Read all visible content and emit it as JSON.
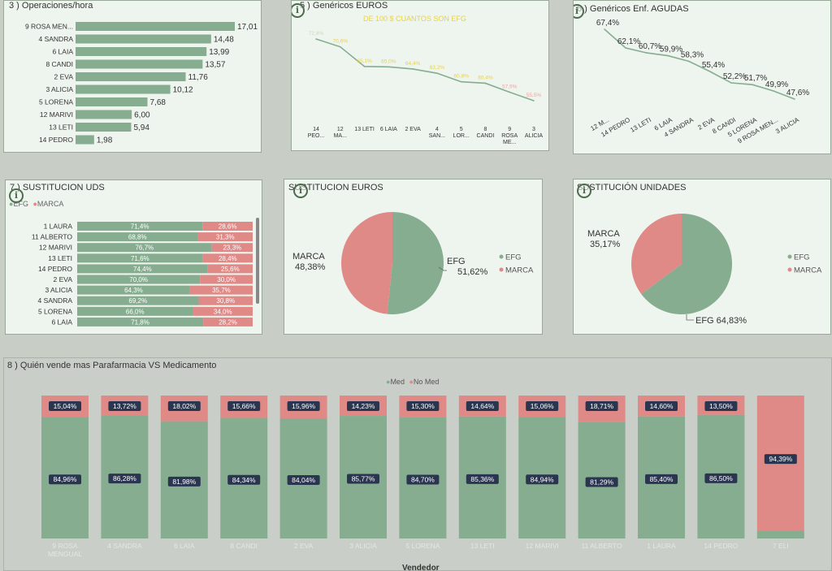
{
  "colors": {
    "green": "#86ad8f",
    "pink": "#e08a87",
    "label_bg": "#2a3550",
    "line": "#86ad8f",
    "yellow": "#e6d44a"
  },
  "panel_ops": {
    "title": "3 ) Operaciones/hora"
  },
  "panel_geur": {
    "title": "5 ) Genéricos EUROS",
    "subtitle": "DE 100 $ CUANTOS SON EFG"
  },
  "panel_gag": {
    "title": "6 ) Genéricos Enf. AGUDAS"
  },
  "panel_suds": {
    "title": "7 ) SUSTITUCION UDS",
    "legend": [
      "EFG",
      "MARCA"
    ]
  },
  "panel_seur": {
    "title": "SUSTITUCION EUROS",
    "legend": [
      "EFG",
      "MARCA"
    ]
  },
  "panel_sun": {
    "title": "SUSTITUCIÓN UNIDADES",
    "legend": [
      "EFG",
      "MARCA"
    ]
  },
  "panel_med": {
    "title": "8 ) Quién vende mas Parafarmacia VS Medicamento",
    "legend": [
      "Med",
      "No Med"
    ],
    "xlabel": "Vendedor"
  },
  "chart_data": [
    {
      "id": "ops",
      "type": "bar",
      "orientation": "horizontal",
      "title": "3 ) Operaciones/hora",
      "categories": [
        "9 ROSA MEN...",
        "4 SANDRA",
        "6 LAIA",
        "8 CANDI",
        "2 EVA",
        "3 ALICIA",
        "5 LORENA",
        "12 MARIVI",
        "13 LETI",
        "14 PEDRO"
      ],
      "values": [
        17.01,
        14.48,
        13.99,
        13.57,
        11.76,
        10.12,
        7.68,
        6.0,
        5.94,
        1.98
      ],
      "labels": [
        "17,01",
        "14,48",
        "13,99",
        "13,57",
        "11,76",
        "10,12",
        "7,68",
        "6,00",
        "5,94",
        "1,98"
      ]
    },
    {
      "id": "geur",
      "type": "line",
      "title": "5 ) Genéricos EUROS",
      "subtitle": "DE 100 $ CUANTOS SON EFG",
      "categories": [
        "14 PEO...",
        "12 MA...",
        "13 LETI",
        "6 LAIA",
        "2 EVA",
        "4 SAN...",
        "5 LOR...",
        "8 CANDI",
        "9 ROSA ME...",
        "3 ALICIA"
      ],
      "values": [
        72.8,
        70.6,
        65.1,
        65.0,
        64.4,
        63.2,
        60.8,
        60.4,
        57.9,
        55.5
      ],
      "labels": [
        "72,8%",
        "70,6%",
        "65,1%",
        "65,0%",
        "64,4%",
        "63,2%",
        "60,8%",
        "60,4%",
        "57,9%",
        "55,5%"
      ]
    },
    {
      "id": "gag",
      "type": "line",
      "title": "6 ) Genéricos Enf. AGUDAS",
      "categories": [
        "12 M...",
        "14 PEDRO",
        "13 LETI",
        "6 LAIA",
        "4 SANDRA",
        "2 EVA",
        "8 CANDI",
        "5 LORENA",
        "9 ROSA MEN...",
        "3 ALICIA"
      ],
      "values": [
        67.4,
        62.1,
        60.7,
        59.9,
        58.3,
        55.4,
        52.2,
        51.7,
        49.9,
        47.6
      ],
      "labels": [
        "67,4%",
        "62,1%",
        "60,7%",
        "59,9%",
        "58,3%",
        "55,4%",
        "52,2%",
        "51,7%",
        "49,9%",
        "47,6%"
      ]
    },
    {
      "id": "suds",
      "type": "bar",
      "orientation": "horizontal-stacked-100",
      "title": "7 ) SUSTITUCION UDS",
      "categories": [
        "1 LAURA",
        "11 ALBERTO",
        "12 MARIVI",
        "13 LETI",
        "14 PEDRO",
        "2 EVA",
        "3 ALICIA",
        "4 SANDRA",
        "5 LORENA",
        "6 LAIA"
      ],
      "series": [
        {
          "name": "EFG",
          "values": [
            71.4,
            68.8,
            76.7,
            71.6,
            74.4,
            70.0,
            64.3,
            69.2,
            66.0,
            71.8
          ],
          "labels": [
            "71,4%",
            "68,8%",
            "76,7%",
            "71,6%",
            "74,4%",
            "70,0%",
            "64,3%",
            "69,2%",
            "66,0%",
            "71,8%"
          ]
        },
        {
          "name": "MARCA",
          "values": [
            28.6,
            31.3,
            23.3,
            28.4,
            25.6,
            30.0,
            35.7,
            30.8,
            34.0,
            28.2
          ],
          "labels": [
            "28,6%",
            "31,3%",
            "23,3%",
            "28,4%",
            "25,6%",
            "30,0%",
            "35,7%",
            "30,8%",
            "34,0%",
            "28,2%"
          ]
        }
      ]
    },
    {
      "id": "seur",
      "type": "pie",
      "title": "SUSTITUCION EUROS",
      "slices": [
        {
          "name": "EFG",
          "value": 51.62,
          "label": "51,62%"
        },
        {
          "name": "MARCA",
          "value": 48.38,
          "label": "48,38%"
        }
      ]
    },
    {
      "id": "sun",
      "type": "pie",
      "title": "SUSTITUCIÓN UNIDADES",
      "slices": [
        {
          "name": "EFG",
          "value": 64.83,
          "label": "EFG 64,83%"
        },
        {
          "name": "MARCA",
          "value": 35.17,
          "label": "35,17%"
        }
      ]
    },
    {
      "id": "med",
      "type": "bar",
      "orientation": "vertical-stacked-100",
      "title": "8 ) Quién vende mas Parafarmacia VS Medicamento",
      "xlabel": "Vendedor",
      "categories": [
        "9 ROSA MENGUAL",
        "4 SANDRA",
        "6 LAIA",
        "8 CANDI",
        "2 EVA",
        "3 ALICIA",
        "5 LORENA",
        "13 LETI",
        "12 MARIVI",
        "11 ALBERTO",
        "1 LAURA",
        "14 PEDRO",
        "7 ELI"
      ],
      "series": [
        {
          "name": "Med",
          "values": [
            84.96,
            86.28,
            81.98,
            84.34,
            84.04,
            85.77,
            84.7,
            85.36,
            84.94,
            81.29,
            85.4,
            86.5,
            5.61
          ],
          "labels": [
            "84,96%",
            "86,28%",
            "81,98%",
            "84,34%",
            "84,04%",
            "85,77%",
            "84,70%",
            "85,36%",
            "84,94%",
            "81,29%",
            "85,40%",
            "86,50%",
            ""
          ]
        },
        {
          "name": "No Med",
          "values": [
            15.04,
            13.72,
            18.02,
            15.66,
            15.96,
            14.23,
            15.3,
            14.64,
            15.06,
            18.71,
            14.6,
            13.5,
            94.39
          ],
          "labels": [
            "15,04%",
            "13,72%",
            "18,02%",
            "15,66%",
            "15,96%",
            "14,23%",
            "15,30%",
            "14,64%",
            "15,06%",
            "18,71%",
            "14,60%",
            "13,50%",
            "94,39%"
          ]
        }
      ]
    }
  ]
}
